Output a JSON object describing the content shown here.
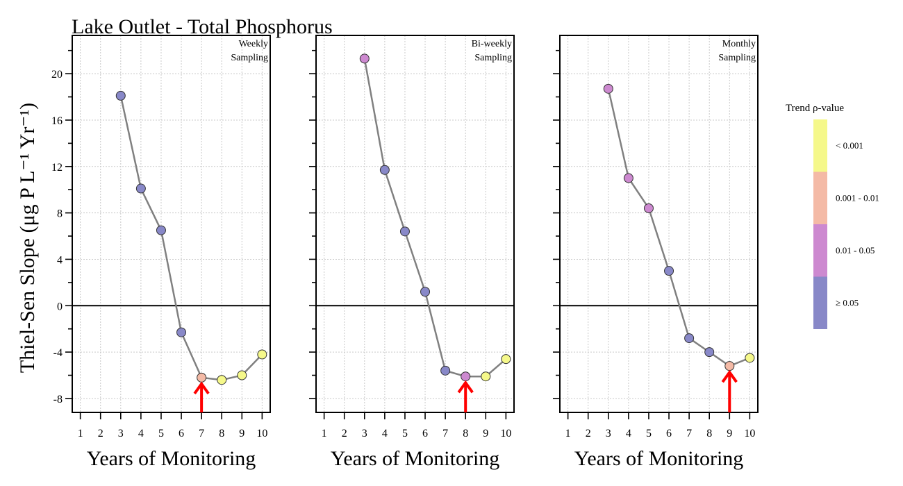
{
  "title": "Lake Outlet - Total Phosphorus",
  "legend": {
    "title": "Trend ρ-value",
    "entries": [
      {
        "label": "< 0.001",
        "color": "#f5f88a",
        "key": "p<0.001"
      },
      {
        "label": "0.001 - 0.01",
        "color": "#f4baa6",
        "key": "0.001-0.01"
      },
      {
        "label": "0.01 - 0.05",
        "color": "#cd89d0",
        "key": "0.01-0.05"
      },
      {
        "label": "≥ 0.05",
        "color": "#8888c8",
        "key": ">=0.05"
      }
    ]
  },
  "chart_data": [
    {
      "type": "line",
      "panel_label_line1": "Weekly",
      "panel_label_line2": "Sampling",
      "xlabel": "Years of Monitoring",
      "ylabel": "Thiel-Sen Slope (μg P L⁻¹ Yr⁻¹)",
      "x_ticks": [
        1,
        2,
        3,
        4,
        5,
        6,
        7,
        8,
        9,
        10
      ],
      "y_ticks": [
        -8,
        -4,
        0,
        4,
        8,
        12,
        16,
        20
      ],
      "xlim": [
        0.6,
        10.4
      ],
      "ylim": [
        -9.2,
        23.3
      ],
      "grid": true,
      "points": [
        {
          "x": 3,
          "y": 18.1,
          "p": ">=0.05"
        },
        {
          "x": 4,
          "y": 10.1,
          "p": ">=0.05"
        },
        {
          "x": 5,
          "y": 6.5,
          "p": ">=0.05"
        },
        {
          "x": 6,
          "y": -2.3,
          "p": ">=0.05"
        },
        {
          "x": 7,
          "y": -6.2,
          "p": "0.001-0.01"
        },
        {
          "x": 8,
          "y": -6.4,
          "p": "p<0.001"
        },
        {
          "x": 9,
          "y": -6.0,
          "p": "p<0.001"
        },
        {
          "x": 10,
          "y": -4.2,
          "p": "p<0.001"
        }
      ],
      "arrow_x": 7
    },
    {
      "type": "line",
      "panel_label_line1": "Bi-weekly",
      "panel_label_line2": "Sampling",
      "xlabel": "Years of Monitoring",
      "x_ticks": [
        1,
        2,
        3,
        4,
        5,
        6,
        7,
        8,
        9,
        10
      ],
      "y_ticks": [
        -8,
        -4,
        0,
        4,
        8,
        12,
        16,
        20
      ],
      "xlim": [
        0.6,
        10.4
      ],
      "ylim": [
        -9.2,
        23.3
      ],
      "grid": true,
      "points": [
        {
          "x": 3,
          "y": 21.3,
          "p": "0.01-0.05"
        },
        {
          "x": 4,
          "y": 11.7,
          "p": ">=0.05"
        },
        {
          "x": 5,
          "y": 6.4,
          "p": ">=0.05"
        },
        {
          "x": 6,
          "y": 1.2,
          "p": ">=0.05"
        },
        {
          "x": 7,
          "y": -5.6,
          "p": ">=0.05"
        },
        {
          "x": 8,
          "y": -6.1,
          "p": "0.01-0.05"
        },
        {
          "x": 9,
          "y": -6.1,
          "p": "p<0.001"
        },
        {
          "x": 10,
          "y": -4.6,
          "p": "p<0.001"
        }
      ],
      "arrow_x": 8
    },
    {
      "type": "line",
      "panel_label_line1": "Monthly",
      "panel_label_line2": "Sampling",
      "xlabel": "Years of Monitoring",
      "x_ticks": [
        1,
        2,
        3,
        4,
        5,
        6,
        7,
        8,
        9,
        10
      ],
      "y_ticks": [
        -8,
        -4,
        0,
        4,
        8,
        12,
        16,
        20
      ],
      "xlim": [
        0.6,
        10.4
      ],
      "ylim": [
        -9.2,
        23.3
      ],
      "grid": true,
      "points": [
        {
          "x": 3,
          "y": 18.7,
          "p": "0.01-0.05"
        },
        {
          "x": 4,
          "y": 11.0,
          "p": "0.01-0.05"
        },
        {
          "x": 5,
          "y": 8.4,
          "p": "0.01-0.05"
        },
        {
          "x": 6,
          "y": 3.0,
          "p": ">=0.05"
        },
        {
          "x": 7,
          "y": -2.8,
          "p": ">=0.05"
        },
        {
          "x": 8,
          "y": -4.0,
          "p": ">=0.05"
        },
        {
          "x": 9,
          "y": -5.2,
          "p": "0.001-0.01"
        },
        {
          "x": 10,
          "y": -4.5,
          "p": "p<0.001"
        }
      ],
      "arrow_x": 9
    }
  ]
}
